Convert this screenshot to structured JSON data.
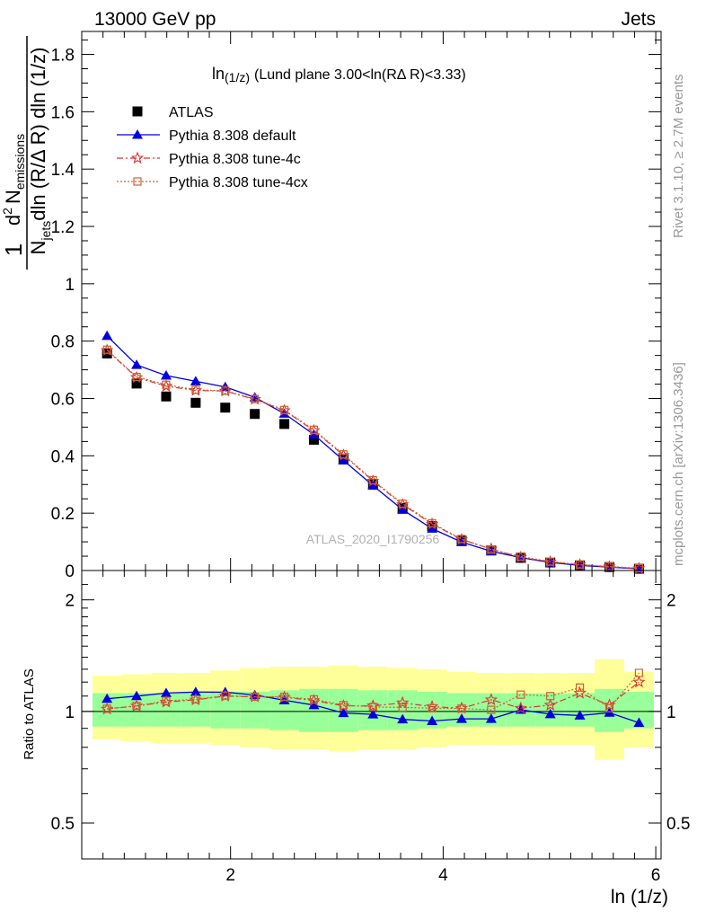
{
  "header": {
    "left": "13000 GeV pp",
    "right": "Jets"
  },
  "side_labels": {
    "rivet": "Rivet 3.1.10, ≥ 2.7M events",
    "mcplots": "mcplots.cern.ch [arXiv:1306.3436]"
  },
  "watermark": "ATLAS_2020_I1790256",
  "colors": {
    "atlas": "#000000",
    "default": "#0000dd",
    "tune4c": "#dd3333",
    "tune4cx": "#c86432",
    "band_inner": "#99ff99",
    "band_outer": "#ffff99"
  },
  "chart_data": [
    {
      "type": "scatter",
      "panel": "main",
      "title": "ln(1/z) (Lund plane 3.00<ln(RΔ R)<3.33)",
      "title_main": "ln",
      "title_sub": "(1/z)",
      "title_rest": "(Lund plane 3.00<ln(RΔ R)<3.33)",
      "ylabel": "1/N_jets d²N_emissions / dln(R/ΔR) dln(1/z)",
      "ylabel_parts": {
        "one": "1",
        "num_d": "d",
        "num_sup": "2",
        "num_N": "N",
        "num_sub": "emissions",
        "den_N": "N",
        "den_sub": "jets",
        "den_rest": "dln (R/Δ R) dln (1/z)"
      },
      "xlim": [
        0.6,
        6.05
      ],
      "ylim": [
        0,
        1.88
      ],
      "yticks": [
        0,
        0.2,
        0.4,
        0.6,
        0.8,
        1,
        1.2,
        1.4,
        1.6,
        1.8
      ],
      "ytick_labels": [
        "0",
        "0.2",
        "0.4",
        "0.6",
        "0.8",
        "1",
        "1.2",
        "1.4",
        "1.6",
        "1.8"
      ],
      "legend_position": "top-left",
      "x": [
        0.838,
        1.116,
        1.394,
        1.672,
        1.95,
        2.228,
        2.506,
        2.784,
        3.062,
        3.34,
        3.618,
        3.896,
        4.174,
        4.452,
        4.73,
        5.008,
        5.286,
        5.564,
        5.842
      ],
      "series": [
        {
          "name": "ATLAS",
          "key": "atlas",
          "marker": "square",
          "values": [
            0.757,
            0.652,
            0.607,
            0.585,
            0.568,
            0.546,
            0.511,
            0.456,
            0.388,
            0.301,
            0.218,
            0.155,
            0.104,
            0.07,
            0.044,
            0.028,
            0.018,
            0.012,
            0.006
          ]
        },
        {
          "name": "Pythia 8.308 default",
          "key": "default",
          "marker": "triangle",
          "values": [
            0.818,
            0.717,
            0.68,
            0.66,
            0.64,
            0.604,
            0.547,
            0.474,
            0.384,
            0.296,
            0.212,
            0.146,
            0.099,
            0.067,
            0.045,
            0.028,
            0.018,
            0.012,
            0.006
          ]
        },
        {
          "name": "Pythia 8.308 tune-4c",
          "key": "tune4c",
          "marker": "star",
          "values": [
            0.768,
            0.673,
            0.643,
            0.628,
            0.626,
            0.597,
            0.558,
            0.488,
            0.402,
            0.312,
            0.23,
            0.162,
            0.108,
            0.075,
            0.046,
            0.03,
            0.02,
            0.013,
            0.007
          ]
        },
        {
          "name": "Pythia 8.308 tune-4cx",
          "key": "tune4cx",
          "marker": "open-square",
          "values": [
            0.77,
            0.675,
            0.648,
            0.63,
            0.627,
            0.598,
            0.56,
            0.491,
            0.405,
            0.315,
            0.233,
            0.165,
            0.11,
            0.073,
            0.049,
            0.031,
            0.021,
            0.014,
            0.008
          ]
        }
      ]
    },
    {
      "type": "line",
      "panel": "ratio",
      "ylabel": "Ratio to ATLAS",
      "xlabel": "ln (1/z)",
      "scale": "log",
      "ylim": [
        0.4,
        2.4
      ],
      "yticks": [
        0.5,
        1,
        2
      ],
      "ytick_labels": [
        "0.5",
        "1",
        "2"
      ],
      "xlim": [
        0.6,
        6.05
      ],
      "xticks": [
        2,
        4,
        6
      ],
      "xtick_labels": [
        "2",
        "4",
        "6"
      ],
      "band_edges": [
        0.699,
        0.977,
        1.255,
        1.533,
        1.811,
        2.089,
        2.367,
        2.645,
        2.923,
        3.201,
        3.479,
        3.757,
        4.035,
        4.313,
        4.591,
        4.869,
        5.147,
        5.425,
        5.703,
        5.981
      ],
      "band_inner_low": [
        0.91,
        0.91,
        0.91,
        0.91,
        0.9,
        0.9,
        0.89,
        0.88,
        0.88,
        0.89,
        0.89,
        0.9,
        0.91,
        0.91,
        0.91,
        0.91,
        0.91,
        0.88,
        0.9
      ],
      "band_inner_high": [
        1.12,
        1.12,
        1.12,
        1.12,
        1.13,
        1.13,
        1.14,
        1.15,
        1.15,
        1.14,
        1.14,
        1.13,
        1.12,
        1.12,
        1.12,
        1.12,
        1.12,
        1.15,
        1.13
      ],
      "band_outer_low": [
        0.84,
        0.83,
        0.82,
        0.82,
        0.81,
        0.8,
        0.79,
        0.79,
        0.78,
        0.79,
        0.79,
        0.8,
        0.81,
        0.81,
        0.81,
        0.81,
        0.81,
        0.74,
        0.8
      ],
      "band_outer_high": [
        1.25,
        1.26,
        1.27,
        1.27,
        1.29,
        1.31,
        1.32,
        1.32,
        1.33,
        1.32,
        1.31,
        1.3,
        1.28,
        1.27,
        1.27,
        1.27,
        1.27,
        1.38,
        1.28
      ],
      "x": [
        0.838,
        1.116,
        1.394,
        1.672,
        1.95,
        2.228,
        2.506,
        2.784,
        3.062,
        3.34,
        3.618,
        3.896,
        4.174,
        4.452,
        4.73,
        5.008,
        5.286,
        5.564,
        5.842
      ],
      "series": [
        {
          "name": "Pythia 8.308 default",
          "key": "default",
          "marker": "triangle",
          "values": [
            1.082,
            1.1,
            1.121,
            1.128,
            1.127,
            1.107,
            1.072,
            1.04,
            0.99,
            0.982,
            0.952,
            0.942,
            0.955,
            0.955,
            1.01,
            0.983,
            0.975,
            0.992,
            0.932
          ]
        },
        {
          "name": "Pythia 8.308 tune-4c",
          "key": "tune4c",
          "marker": "star",
          "values": [
            1.015,
            1.035,
            1.06,
            1.075,
            1.1,
            1.095,
            1.092,
            1.07,
            1.035,
            1.035,
            1.055,
            1.03,
            1.02,
            1.075,
            1.02,
            1.04,
            1.12,
            1.04,
            1.2
          ]
        },
        {
          "name": "Pythia 8.308 tune-4cx",
          "key": "tune4cx",
          "marker": "open-square",
          "values": [
            1.017,
            1.035,
            1.068,
            1.078,
            1.103,
            1.095,
            1.095,
            1.078,
            1.04,
            1.028,
            1.025,
            1.02,
            1.018,
            1.01,
            1.11,
            1.1,
            1.16,
            1.02,
            1.27
          ]
        }
      ]
    }
  ]
}
